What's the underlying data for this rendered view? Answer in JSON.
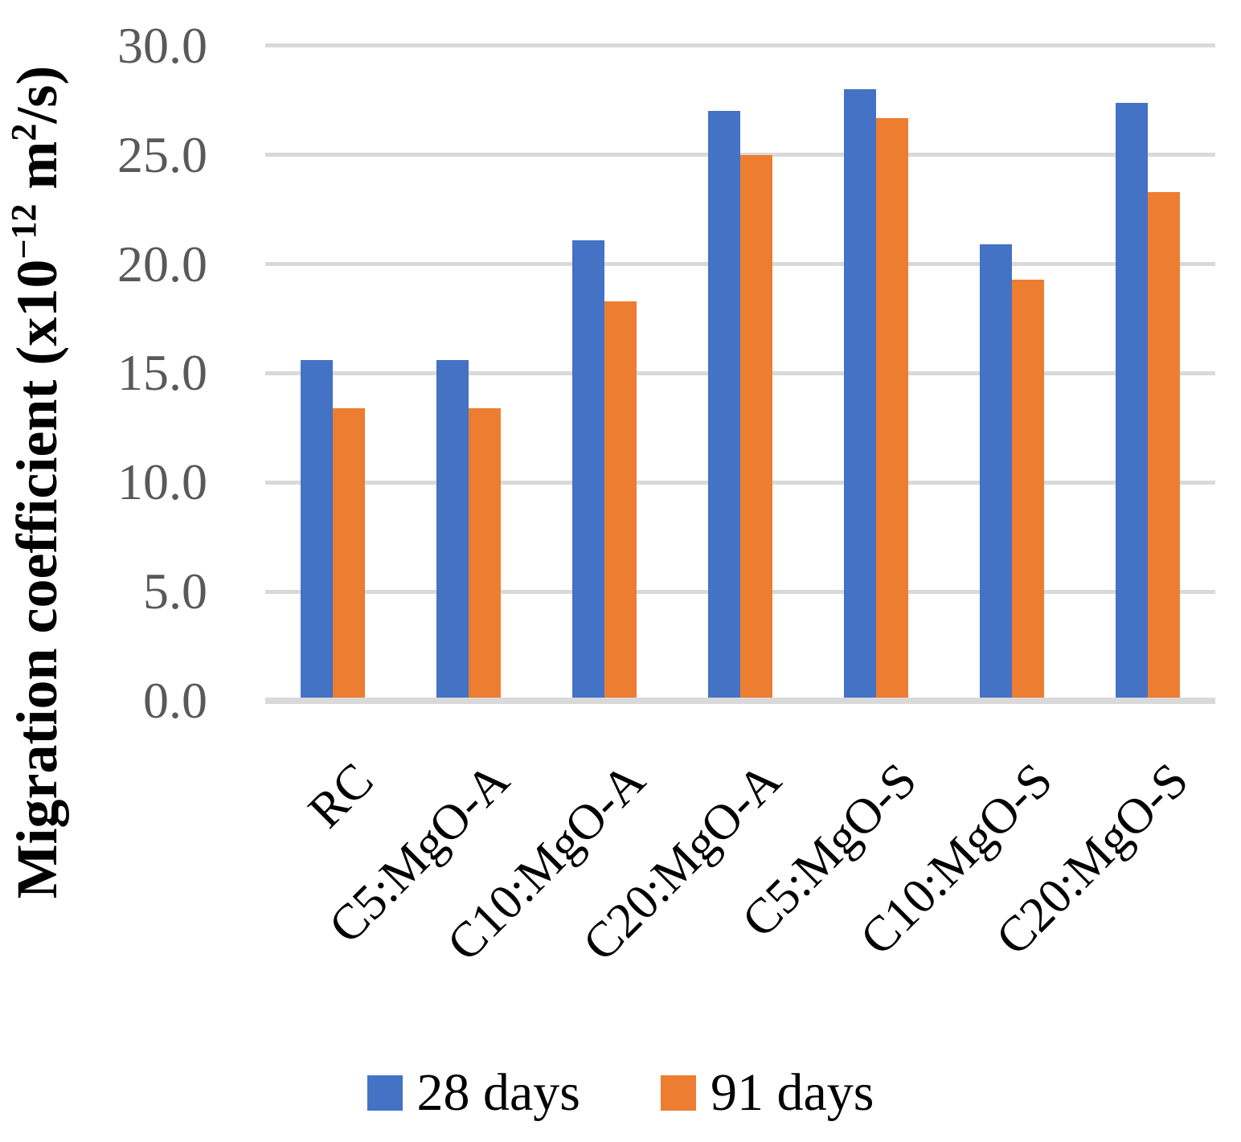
{
  "chart_data": {
    "type": "bar",
    "title": "",
    "categories": [
      "RC",
      "C5:MgO-A",
      "C10:MgO-A",
      "C20:MgO-A",
      "C5:MgO-S",
      "C10:MgO-S",
      "C20:MgO-S"
    ],
    "series": [
      {
        "name": "28 days",
        "color": "#4472C4",
        "values": [
          15.6,
          15.6,
          21.1,
          27.0,
          28.0,
          20.9,
          27.4
        ]
      },
      {
        "name": "91 days",
        "color": "#ED7D31",
        "values": [
          13.4,
          13.4,
          18.3,
          25.0,
          26.7,
          19.3,
          23.3
        ]
      }
    ],
    "ylabel": "Migration coefficient (x10−12 m2/s)",
    "ylabel_parts": [
      {
        "text": "Migration coefficient (x10",
        "sup": false
      },
      {
        "text": "−12",
        "sup": true
      },
      {
        "text": " m",
        "sup": false
      },
      {
        "text": "2",
        "sup": true
      },
      {
        "text": "/s)",
        "sup": false
      }
    ],
    "ytick_labels": [
      "30.0",
      "25.0",
      "20.0",
      "15.0",
      "10.0",
      "5.0",
      "0.0"
    ],
    "ylim": [
      0,
      30
    ],
    "ytick_step": 5,
    "grid": true,
    "legend_position": "bottom",
    "colors": {
      "grid": "#D9D9D9",
      "tick_text": "#595959",
      "label_text": "#000000",
      "background": "#FFFFFF"
    }
  }
}
